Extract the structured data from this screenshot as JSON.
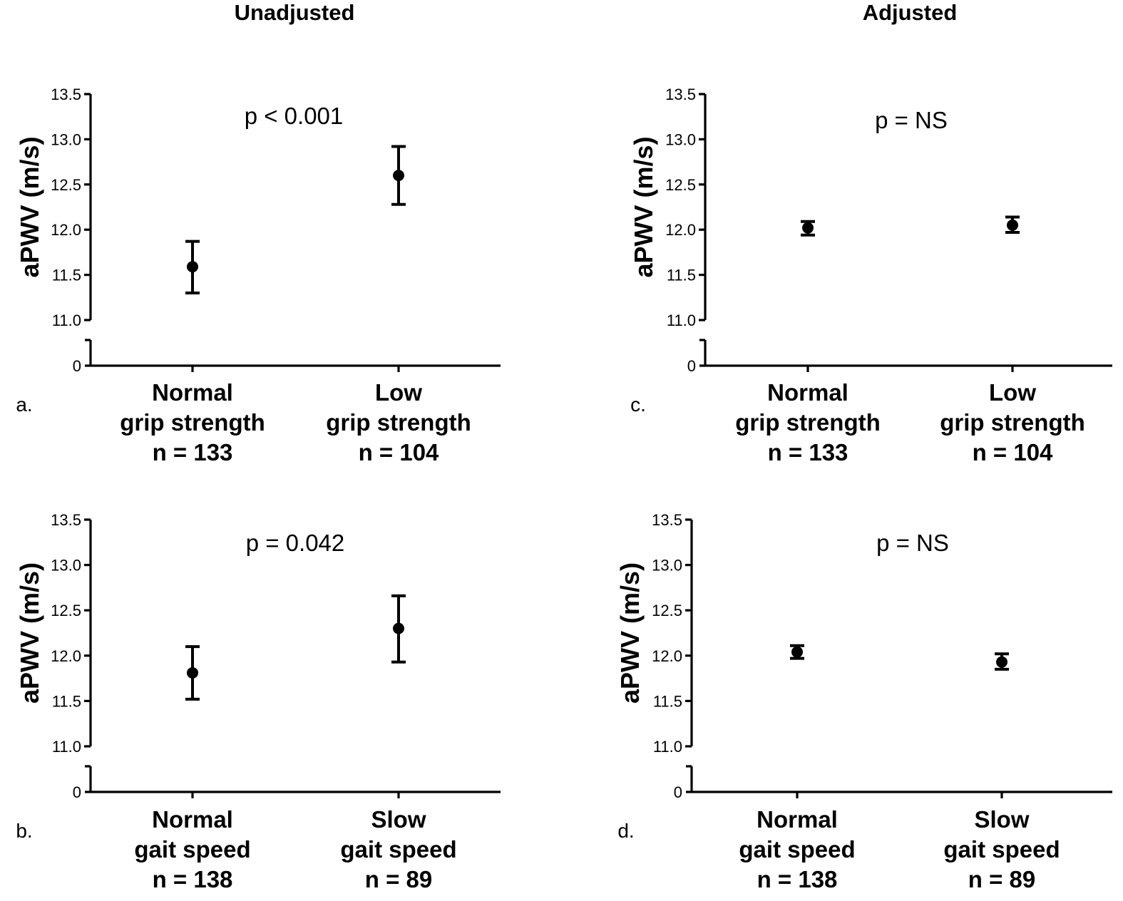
{
  "headers": {
    "left": "Unadjusted",
    "right": "Adjusted"
  },
  "chart_data": [
    {
      "id": "a",
      "panel_label": "a.",
      "type": "scatter",
      "ylabel": "aPWV (m/s)",
      "ylim": [
        11.0,
        13.5
      ],
      "yticks": [
        "11.0",
        "11.5",
        "12.0",
        "12.5",
        "13.0",
        "13.5"
      ],
      "ybreak_tick": "0",
      "annotation": "p < 0.001",
      "groups": [
        {
          "label": [
            "Normal",
            "grip strength",
            "n = 133"
          ],
          "mean": 11.59,
          "lower": 11.3,
          "upper": 11.87
        },
        {
          "label": [
            "Low",
            "grip strength",
            "n = 104"
          ],
          "mean": 12.6,
          "lower": 12.28,
          "upper": 12.92
        }
      ]
    },
    {
      "id": "b",
      "panel_label": "b.",
      "type": "scatter",
      "ylabel": "aPWV (m/s)",
      "ylim": [
        11.0,
        13.5
      ],
      "yticks": [
        "11.0",
        "11.5",
        "12.0",
        "12.5",
        "13.0",
        "13.5"
      ],
      "ybreak_tick": "0",
      "annotation": "p = 0.042",
      "groups": [
        {
          "label": [
            "Normal",
            "gait speed",
            "n = 138"
          ],
          "mean": 11.81,
          "lower": 11.52,
          "upper": 12.1
        },
        {
          "label": [
            "Slow",
            "gait speed",
            "n = 89"
          ],
          "mean": 12.3,
          "lower": 11.93,
          "upper": 12.66
        }
      ]
    },
    {
      "id": "c",
      "panel_label": "c.",
      "type": "scatter",
      "ylabel": "aPWV (m/s)",
      "ylim": [
        11.0,
        13.5
      ],
      "yticks": [
        "11.0",
        "11.5",
        "12.0",
        "12.5",
        "13.0",
        "13.5"
      ],
      "ybreak_tick": "0",
      "annotation": "p = NS",
      "groups": [
        {
          "label": [
            "Normal",
            "grip strength",
            "n = 133"
          ],
          "mean": 12.02,
          "lower": 11.94,
          "upper": 12.09
        },
        {
          "label": [
            "Low",
            "grip strength",
            "n = 104"
          ],
          "mean": 12.05,
          "lower": 11.97,
          "upper": 12.14
        }
      ]
    },
    {
      "id": "d",
      "panel_label": "d.",
      "type": "scatter",
      "ylabel": "aPWV (m/s)",
      "ylim": [
        11.0,
        13.5
      ],
      "yticks": [
        "11.0",
        "11.5",
        "12.0",
        "12.5",
        "13.0",
        "13.5"
      ],
      "ybreak_tick": "0",
      "annotation": "p = NS",
      "groups": [
        {
          "label": [
            "Normal",
            "gait speed",
            "n = 138"
          ],
          "mean": 12.04,
          "lower": 11.97,
          "upper": 12.11
        },
        {
          "label": [
            "Slow",
            "gait speed",
            "n = 89"
          ],
          "mean": 11.93,
          "lower": 11.85,
          "upper": 12.02
        }
      ]
    }
  ]
}
